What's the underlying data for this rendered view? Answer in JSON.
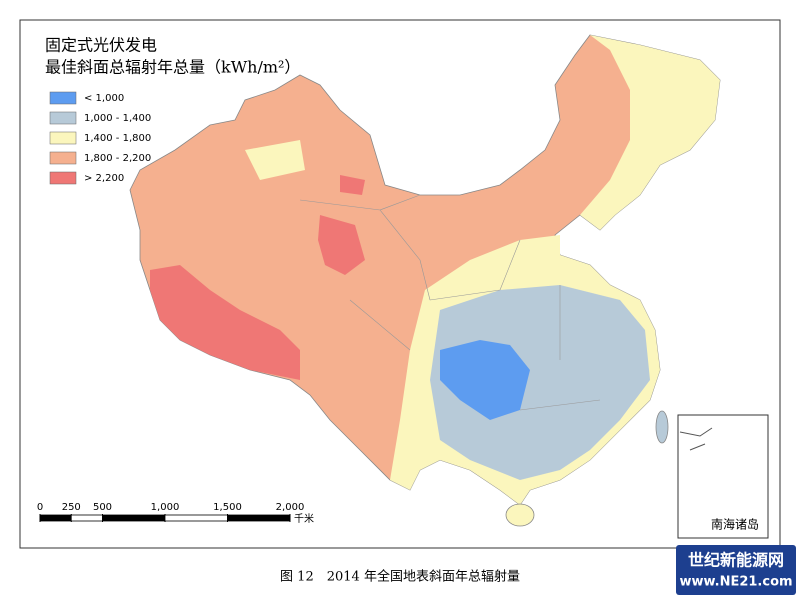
{
  "title": [
    "固定式光伏发电",
    "最佳斜面总辐射年总量（kWh/m²）"
  ],
  "legend": {
    "items": [
      {
        "label": "< 1,000",
        "color": "#5d9cf0"
      },
      {
        "label": "1,000 - 1,400",
        "color": "#b7cad8"
      },
      {
        "label": "1,400 - 1,800",
        "color": "#fbf6bd"
      },
      {
        "label": "1,800 - 2,200",
        "color": "#f5b08f"
      },
      {
        "label": "> 2,200",
        "color": "#ef7775"
      }
    ]
  },
  "scale_bar": {
    "ticks": [
      0,
      250,
      500,
      {
        "value": 1000,
        "label": "1,000"
      },
      {
        "value": 1500,
        "label": "1,500"
      },
      {
        "value": 2000,
        "label": "2,000"
      }
    ],
    "unit": "千米"
  },
  "inset_label": "南海诸岛",
  "caption": "图 12　2014 年全国地表斜面年总辐射量",
  "watermark": {
    "name": "世纪新能源网",
    "url": "www.NE21.com"
  }
}
